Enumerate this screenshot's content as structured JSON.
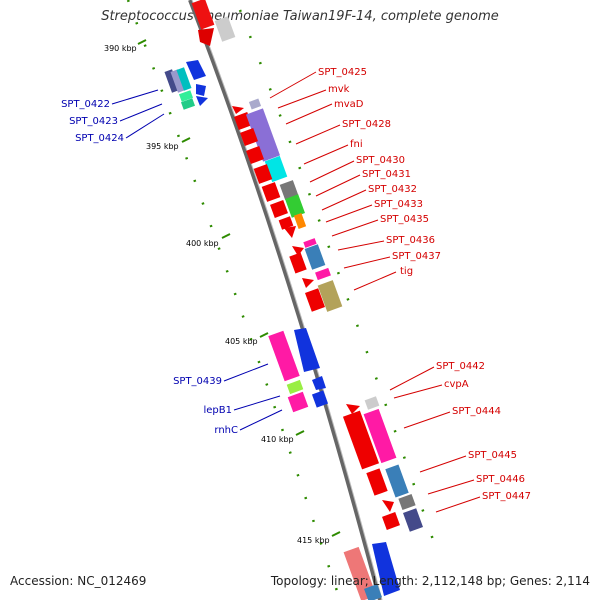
{
  "title": "Streptococcus pneumoniae Taiwan19F-14, complete genome",
  "footer": {
    "accession": "Accession: NC_012469",
    "summary": "Topology: linear; Length: 2,112,148 bp; Genes: 2,114"
  },
  "colors": {
    "backbone": "#888888",
    "tick": "#2e8b00",
    "forward_label": "#d40000",
    "reverse_label": "#0000b0"
  },
  "scale_ticks": [
    "390 kbp",
    "395 kbp",
    "400 kbp",
    "405 kbp",
    "410 kbp",
    "415 kbp"
  ],
  "forward_genes": [
    "SPT_0425",
    "mvk",
    "mvaD",
    "SPT_0428",
    "fni",
    "SPT_0430",
    "SPT_0431",
    "SPT_0432",
    "SPT_0433",
    "SPT_0435",
    "SPT_0436",
    "SPT_0437",
    "tig",
    "SPT_0442",
    "cvpA",
    "SPT_0444",
    "SPT_0445",
    "SPT_0446",
    "SPT_0447"
  ],
  "reverse_genes": [
    "SPT_0422",
    "SPT_0423",
    "SPT_0424",
    "SPT_0439",
    "lepB1",
    "rnhC"
  ]
}
